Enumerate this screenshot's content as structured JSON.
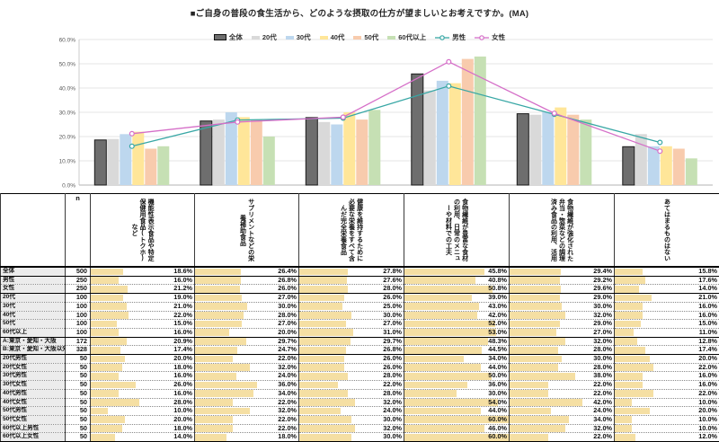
{
  "chart": {
    "title": "■ご自身の普段の食生活から、どのような摂取の仕方が望ましいとお考えですか。(MA)",
    "y_ticks": [
      "0.0%",
      "10.0%",
      "20.0%",
      "30.0%",
      "40.0%",
      "50.0%",
      "60.0%"
    ]
  },
  "chart_data": {
    "type": "bar+line",
    "title": "■ご自身の普段の食生活から、どのような摂取の仕方が望ましいとお考えですか。(MA)",
    "categories": [
      "機能性表示食品や特定保健用食品(トクホ)など",
      "サプリメントなどの栄養補助食品",
      "健康を維持するために必要な栄養をすべて含んだ完全栄養食品",
      "食物繊維が豊富な食材の利用、日常のメニューや材料での工夫",
      "食物繊維が強化された弁当・惣菜などの調理済み食品の利用、活用",
      "あてはまるものはない"
    ],
    "ylim": [
      0,
      60
    ],
    "y_tick_step": 10,
    "legend_position": "top",
    "grid": true,
    "bar_series": [
      {
        "name": "全体",
        "color": "#6e6e6e",
        "border": "#1a1a1a",
        "values": [
          18.6,
          26.4,
          27.8,
          45.8,
          29.4,
          15.8
        ]
      },
      {
        "name": "20代",
        "color": "#d9d9d9",
        "values": [
          19.0,
          27.0,
          26.0,
          39.0,
          29.0,
          21.0
        ]
      },
      {
        "name": "30代",
        "color": "#bdd7ee",
        "values": [
          21.0,
          30.0,
          25.0,
          43.0,
          30.0,
          16.0
        ]
      },
      {
        "name": "40代",
        "color": "#ffe699",
        "values": [
          22.0,
          28.0,
          30.0,
          42.0,
          32.0,
          16.0
        ]
      },
      {
        "name": "50代",
        "color": "#f8cbad",
        "values": [
          15.0,
          27.0,
          27.0,
          52.0,
          29.0,
          15.0
        ]
      },
      {
        "name": "60代以上",
        "color": "#c6e0b4",
        "values": [
          16.0,
          20.0,
          31.0,
          53.0,
          27.0,
          11.0
        ]
      }
    ],
    "line_series": [
      {
        "name": "男性",
        "color": "#38a7a5",
        "values": [
          16.0,
          26.8,
          27.6,
          40.8,
          29.2,
          17.6
        ]
      },
      {
        "name": "女性",
        "color": "#d56fc8",
        "values": [
          21.2,
          26.0,
          28.0,
          50.8,
          29.6,
          14.0
        ]
      }
    ]
  },
  "table": {
    "n_header": "n",
    "columns": [
      "機能性表示食品や特定保健用食品(トクホ)など",
      "サプリメントなどの栄養補助食品",
      "健康を維持するために必要な栄養をすべて含んだ完全栄養食品",
      "食物繊維が豊富な食材の利用、日常のメニューや材料での工夫",
      "食物繊維が強化された弁当・惣菜などの調理済み食品の利用、活用",
      "あてはまるものはない"
    ],
    "bar_color": "#f5dfa3",
    "bar_scale_max": 60,
    "group_end_rows": [
      0,
      2,
      7,
      9,
      19
    ],
    "rows": [
      {
        "label": "全体",
        "n": "500",
        "values": [
          "18.6%",
          "26.4%",
          "27.8%",
          "45.8%",
          "29.4%",
          "15.8%"
        ]
      },
      {
        "label": "男性",
        "n": "250",
        "values": [
          "16.0%",
          "26.8%",
          "27.6%",
          "40.8%",
          "29.2%",
          "17.6%"
        ]
      },
      {
        "label": "女性",
        "n": "250",
        "values": [
          "21.2%",
          "26.0%",
          "28.0%",
          "50.8%",
          "29.6%",
          "14.0%"
        ]
      },
      {
        "label": "20代",
        "n": "100",
        "values": [
          "19.0%",
          "27.0%",
          "26.0%",
          "39.0%",
          "29.0%",
          "21.0%"
        ]
      },
      {
        "label": "30代",
        "n": "100",
        "values": [
          "21.0%",
          "30.0%",
          "25.0%",
          "43.0%",
          "30.0%",
          "16.0%"
        ]
      },
      {
        "label": "40代",
        "n": "100",
        "values": [
          "22.0%",
          "28.0%",
          "30.0%",
          "42.0%",
          "32.0%",
          "16.0%"
        ]
      },
      {
        "label": "50代",
        "n": "100",
        "values": [
          "15.0%",
          "27.0%",
          "27.0%",
          "52.0%",
          "29.0%",
          "15.0%"
        ]
      },
      {
        "label": "60代以上",
        "n": "100",
        "values": [
          "16.0%",
          "20.0%",
          "31.0%",
          "53.0%",
          "27.0%",
          "11.0%"
        ]
      },
      {
        "label": "A:東京・愛知・大阪",
        "n": "172",
        "values": [
          "20.9%",
          "29.7%",
          "29.7%",
          "48.3%",
          "32.0%",
          "12.8%"
        ]
      },
      {
        "label": "B:東京・愛知・大阪以外",
        "n": "328",
        "values": [
          "17.4%",
          "24.7%",
          "26.8%",
          "44.5%",
          "28.0%",
          "17.4%"
        ]
      },
      {
        "label": "20代男性",
        "n": "50",
        "values": [
          "20.0%",
          "22.0%",
          "26.0%",
          "34.0%",
          "30.0%",
          "20.0%"
        ]
      },
      {
        "label": "20代女性",
        "n": "50",
        "values": [
          "18.0%",
          "32.0%",
          "26.0%",
          "44.0%",
          "28.0%",
          "22.0%"
        ]
      },
      {
        "label": "30代男性",
        "n": "50",
        "values": [
          "16.0%",
          "24.0%",
          "28.0%",
          "50.0%",
          "38.0%",
          "16.0%"
        ]
      },
      {
        "label": "30代女性",
        "n": "50",
        "values": [
          "26.0%",
          "36.0%",
          "22.0%",
          "36.0%",
          "22.0%",
          "16.0%"
        ]
      },
      {
        "label": "40代男性",
        "n": "50",
        "values": [
          "16.0%",
          "34.0%",
          "28.0%",
          "30.0%",
          "22.0%",
          "22.0%"
        ]
      },
      {
        "label": "40代女性",
        "n": "50",
        "values": [
          "28.0%",
          "22.0%",
          "32.0%",
          "54.0%",
          "42.0%",
          "10.0%"
        ]
      },
      {
        "label": "50代男性",
        "n": "50",
        "values": [
          "10.0%",
          "32.0%",
          "24.0%",
          "44.0%",
          "24.0%",
          "20.0%"
        ]
      },
      {
        "label": "50代女性",
        "n": "50",
        "values": [
          "20.0%",
          "22.0%",
          "30.0%",
          "60.0%",
          "34.0%",
          "10.0%"
        ]
      },
      {
        "label": "60代以上男性",
        "n": "50",
        "values": [
          "18.0%",
          "22.0%",
          "32.0%",
          "46.0%",
          "32.0%",
          "10.0%"
        ]
      },
      {
        "label": "60代以上女性",
        "n": "50",
        "values": [
          "14.0%",
          "18.0%",
          "30.0%",
          "60.0%",
          "22.0%",
          "12.0%"
        ]
      }
    ]
  }
}
